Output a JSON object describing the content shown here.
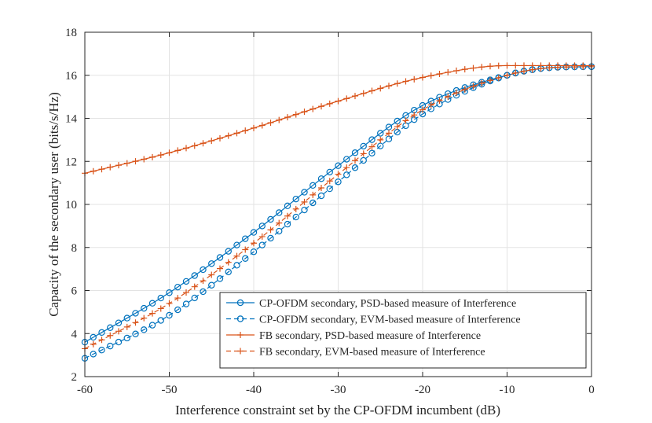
{
  "chart_data": {
    "type": "line",
    "title": "",
    "xlabel": "Interference constraint set by the CP-OFDM incumbent (dB)",
    "ylabel": "Capacity of the secondary user (bits/s/Hz)",
    "xlim": [
      -60,
      0
    ],
    "ylim": [
      2,
      18
    ],
    "xticks": [
      -60,
      -50,
      -40,
      -30,
      -20,
      -10,
      0
    ],
    "yticks": [
      2,
      4,
      6,
      8,
      10,
      12,
      14,
      16,
      18
    ],
    "grid": true,
    "legend_position": "bottom-right",
    "x": [
      -60,
      -50,
      -40,
      -30,
      -20,
      -10,
      -5,
      0
    ],
    "series": [
      {
        "name": "CP-OFDM secondary, PSD-based measure of Interference",
        "color": "#0072BD",
        "line": "solid",
        "marker": "circle",
        "values": [
          3.6,
          5.9,
          8.7,
          11.8,
          14.6,
          16.0,
          16.35,
          16.4
        ]
      },
      {
        "name": "CP-OFDM secondary, EVM-based measure of Interference",
        "color": "#0072BD",
        "line": "dashed",
        "marker": "circle",
        "values": [
          2.85,
          4.85,
          7.8,
          11.05,
          14.2,
          16.0,
          16.35,
          16.4
        ]
      },
      {
        "name": "FB secondary, PSD-based measure of Interference",
        "color": "#D95319",
        "line": "solid",
        "marker": "plus",
        "values": [
          11.45,
          12.4,
          13.55,
          14.8,
          15.9,
          16.45,
          16.45,
          16.45
        ]
      },
      {
        "name": "FB secondary, EVM-based measure of Interference",
        "color": "#D95319",
        "line": "dashed",
        "marker": "plus",
        "values": [
          3.3,
          5.4,
          8.2,
          11.4,
          14.4,
          16.0,
          16.35,
          16.4
        ]
      }
    ]
  }
}
